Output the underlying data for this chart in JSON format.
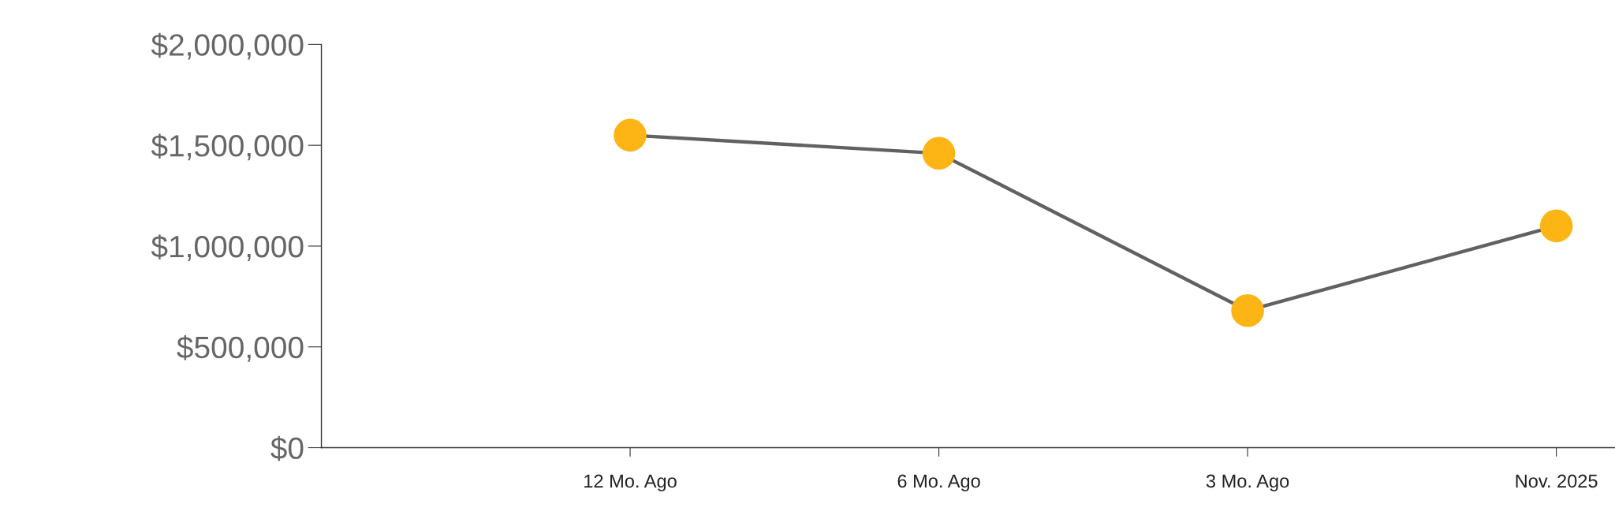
{
  "chart_data": {
    "type": "line",
    "categories": [
      "12 Mo. Ago",
      "6 Mo. Ago",
      "3 Mo. Ago",
      "Nov. 2025"
    ],
    "series": [
      {
        "color": "#616161",
        "colors": [
          "#fdb515",
          "#fdb515",
          "#fdb515",
          "#fdb515"
        ],
        "values": [
          1550000,
          1460000,
          680000,
          1100000
        ]
      }
    ],
    "ylim": [
      0,
      2000000
    ],
    "yticks": [
      {
        "value": 0,
        "label": "$0"
      },
      {
        "value": 500000,
        "label": "$500,000"
      },
      {
        "value": 1000000,
        "label": "$1,000,000"
      },
      {
        "value": 1500000,
        "label": "$1,500,000"
      },
      {
        "value": 2000000,
        "label": "$2,000,000"
      }
    ],
    "grid": false,
    "legend": false,
    "marker": "circle",
    "line_style": "solid"
  }
}
